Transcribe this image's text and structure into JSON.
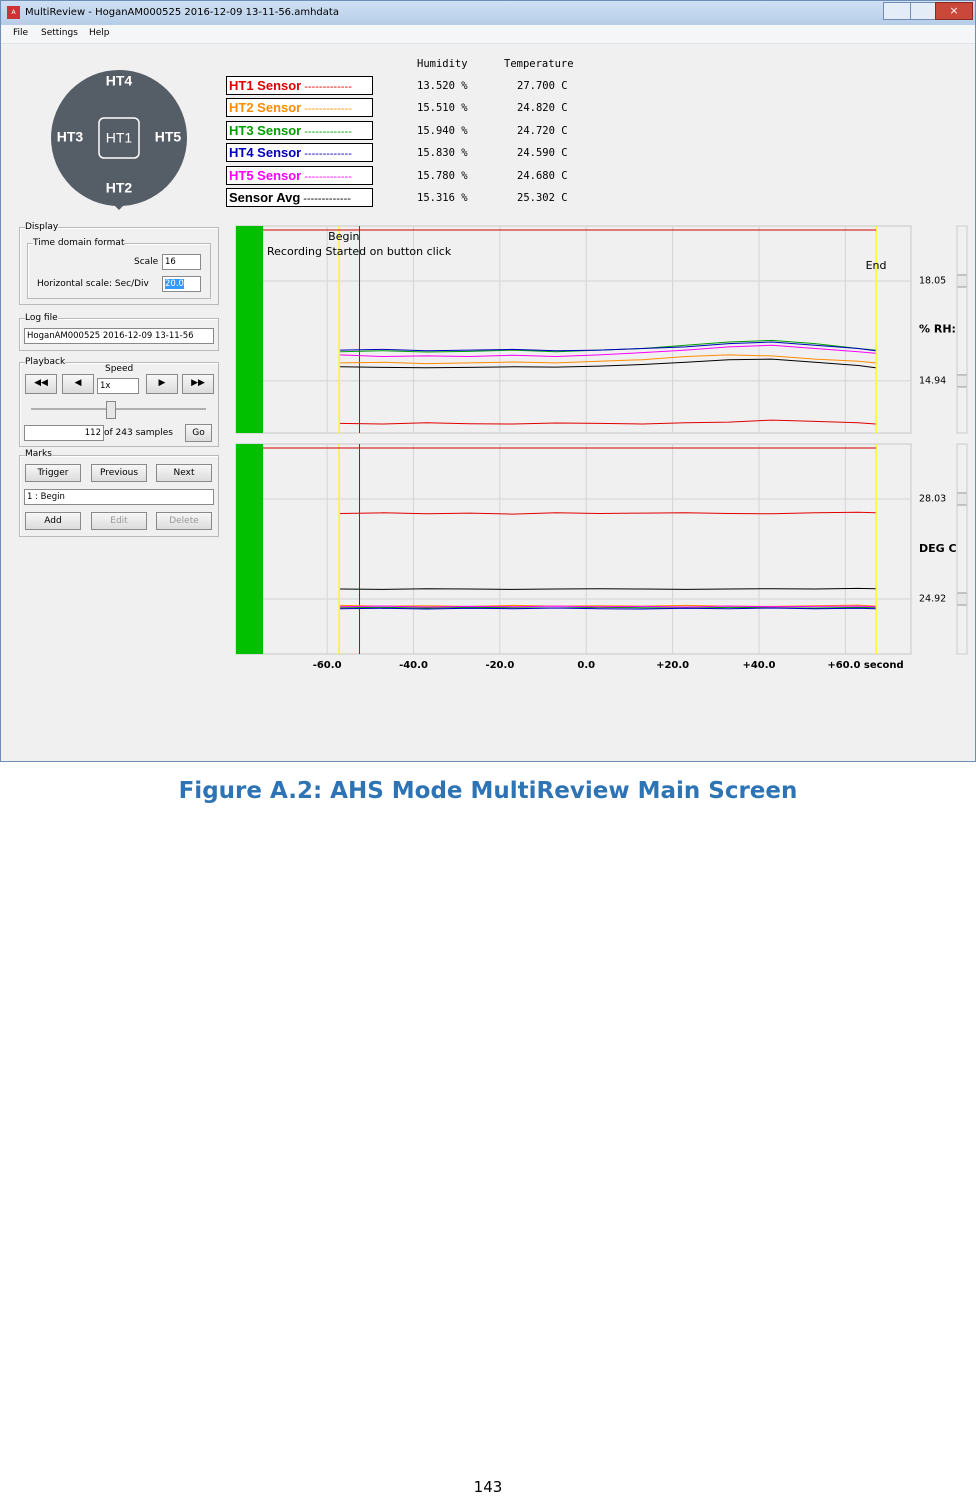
{
  "window": {
    "title": "MultiReview - HoganAM000525 2016-12-09 13-11-56.amhdata",
    "menu": [
      "File",
      "Settings",
      "Help"
    ]
  },
  "sensor_map": {
    "top": "HT4",
    "left": "HT3",
    "center": "HT1",
    "right": "HT5",
    "bottom": "HT2"
  },
  "readings": {
    "headers": [
      "Humidity",
      "Temperature"
    ],
    "rows": [
      {
        "name": "HT1 Sensor",
        "dashes": "-------------",
        "color": "#e00000",
        "humidity": "13.520 %",
        "temperature": "27.700 C"
      },
      {
        "name": "HT2 Sensor",
        "dashes": "-------------",
        "color": "#ff8c00",
        "humidity": "15.510 %",
        "temperature": "24.820 C"
      },
      {
        "name": "HT3 Sensor",
        "dashes": "-------------",
        "color": "#00a000",
        "humidity": "15.940 %",
        "temperature": "24.720 C"
      },
      {
        "name": "HT4 Sensor",
        "dashes": "-------------",
        "color": "#0000c0",
        "humidity": "15.830 %",
        "temperature": "24.590 C"
      },
      {
        "name": "HT5 Sensor",
        "dashes": "-------------",
        "color": "#ff00ff",
        "humidity": "15.780 %",
        "temperature": "24.680 C"
      },
      {
        "name": "Sensor Avg",
        "dashes": "-------------",
        "color": "#000000",
        "humidity": "15.316 %",
        "temperature": "25.302 C"
      }
    ]
  },
  "display": {
    "title": "Display",
    "group": "Time domain format",
    "scale_label": "Scale",
    "scale": "16",
    "hscale_label": "Horizontal scale: Sec/Div",
    "hscale": "20.0"
  },
  "log_file": {
    "title": "Log file",
    "file": "HoganAM000525 2016-12-09 13-11-56"
  },
  "playback": {
    "title": "Playback",
    "speed_label": "Speed",
    "speed": "1x",
    "sample": "112",
    "of_samples": "of 243 samples",
    "go": "Go"
  },
  "marks": {
    "title": "Marks",
    "buttons": [
      "Trigger",
      "Previous",
      "Next"
    ],
    "selected": "1 : Begin",
    "actions": [
      "Add",
      "Edit",
      "Delete"
    ]
  },
  "chart_data": [
    {
      "type": "line",
      "y_label": "% RH:",
      "annotations": [
        {
          "text": "Begin",
          "x": -52.5
        },
        {
          "text": "End",
          "x": 67.1
        }
      ],
      "note": "Recording Started on button click",
      "span": [
        -57.2,
        67.1
      ],
      "xlim": [
        -81.1,
        75.2
      ],
      "ylim": [
        13.32,
        19.76
      ],
      "yticks": [
        14.94,
        18.05
      ],
      "x": [
        -57,
        -47,
        -37,
        -27,
        -17,
        -7,
        3,
        13,
        23,
        33,
        43,
        53,
        63,
        67
      ],
      "series": [
        {
          "name": "HT1 Sensor",
          "color": "#e00000",
          "values": [
            13.62,
            13.6,
            13.64,
            13.61,
            13.6,
            13.63,
            13.62,
            13.6,
            13.64,
            13.66,
            13.72,
            13.68,
            13.64,
            13.6
          ]
        },
        {
          "name": "HT2 Sensor",
          "color": "#ff8c00",
          "values": [
            15.5,
            15.52,
            15.48,
            15.5,
            15.53,
            15.5,
            15.55,
            15.6,
            15.7,
            15.75,
            15.72,
            15.62,
            15.55,
            15.5
          ]
        },
        {
          "name": "HT3 Sensor",
          "color": "#00a000",
          "values": [
            15.85,
            15.88,
            15.84,
            15.86,
            15.9,
            15.85,
            15.9,
            15.95,
            16.05,
            16.15,
            16.2,
            16.1,
            15.95,
            15.9
          ]
        },
        {
          "name": "HT4 Sensor",
          "color": "#0000c0",
          "values": [
            15.9,
            15.92,
            15.88,
            15.9,
            15.92,
            15.88,
            15.9,
            15.95,
            16.0,
            16.1,
            16.15,
            16.05,
            15.95,
            15.88
          ]
        },
        {
          "name": "HT5 Sensor",
          "color": "#ff00ff",
          "values": [
            15.75,
            15.7,
            15.72,
            15.7,
            15.74,
            15.7,
            15.75,
            15.82,
            15.9,
            16.0,
            16.05,
            15.95,
            15.85,
            15.8
          ]
        },
        {
          "name": "Sensor Avg",
          "color": "#000000",
          "values": [
            15.38,
            15.36,
            15.35,
            15.36,
            15.38,
            15.37,
            15.4,
            15.45,
            15.52,
            15.6,
            15.62,
            15.52,
            15.42,
            15.35
          ]
        }
      ]
    },
    {
      "type": "line",
      "y_label": "DEG C",
      "span": [
        -57.2,
        67.1
      ],
      "begin_x": -52.5,
      "xlim": [
        -81.1,
        75.2
      ],
      "ylim": [
        23.21,
        29.74
      ],
      "yticks": [
        24.92,
        28.03
      ],
      "xticks": [
        {
          "value": -60,
          "label": "-60.0"
        },
        {
          "value": -40,
          "label": "-40.0"
        },
        {
          "value": -20,
          "label": "-20.0"
        },
        {
          "value": 0,
          "label": "0.0"
        },
        {
          "value": 20,
          "label": "+20.0"
        },
        {
          "value": 40,
          "label": "+40.0"
        },
        {
          "value": 60,
          "label": "+60.0 second"
        }
      ],
      "x": [
        -57,
        -47,
        -37,
        -27,
        -17,
        -7,
        3,
        13,
        23,
        33,
        43,
        53,
        63,
        67
      ],
      "series": [
        {
          "name": "HT1 Sensor",
          "color": "#e00000",
          "values": [
            27.58,
            27.6,
            27.57,
            27.59,
            27.56,
            27.6,
            27.58,
            27.59,
            27.6,
            27.58,
            27.57,
            27.6,
            27.62,
            27.6
          ]
        },
        {
          "name": "HT2 Sensor",
          "color": "#ff8c00",
          "values": [
            24.72,
            24.7,
            24.71,
            24.69,
            24.72,
            24.7,
            24.71,
            24.7,
            24.72,
            24.7,
            24.69,
            24.71,
            24.73,
            24.7
          ]
        },
        {
          "name": "HT3 Sensor",
          "color": "#00a000",
          "values": [
            24.65,
            24.66,
            24.64,
            24.66,
            24.65,
            24.64,
            24.66,
            24.65,
            24.64,
            24.66,
            24.65,
            24.64,
            24.66,
            24.65
          ]
        },
        {
          "name": "HT4 Sensor",
          "color": "#0000c0",
          "values": [
            24.62,
            24.63,
            24.61,
            24.63,
            24.62,
            24.64,
            24.62,
            24.61,
            24.63,
            24.62,
            24.64,
            24.62,
            24.63,
            24.62
          ]
        },
        {
          "name": "HT5 Sensor",
          "color": "#ff00ff",
          "values": [
            24.68,
            24.7,
            24.67,
            24.69,
            24.68,
            24.7,
            24.68,
            24.69,
            24.67,
            24.7,
            24.68,
            24.69,
            24.7,
            24.68
          ]
        },
        {
          "name": "Sensor Avg",
          "color": "#000000",
          "values": [
            25.23,
            25.22,
            25.24,
            25.23,
            25.22,
            25.23,
            25.24,
            25.23,
            25.22,
            25.23,
            25.24,
            25.23,
            25.25,
            25.24
          ]
        }
      ]
    }
  ],
  "caption": "Figure A.2: AHS Mode MultiReview Main Screen",
  "page_number": "143"
}
